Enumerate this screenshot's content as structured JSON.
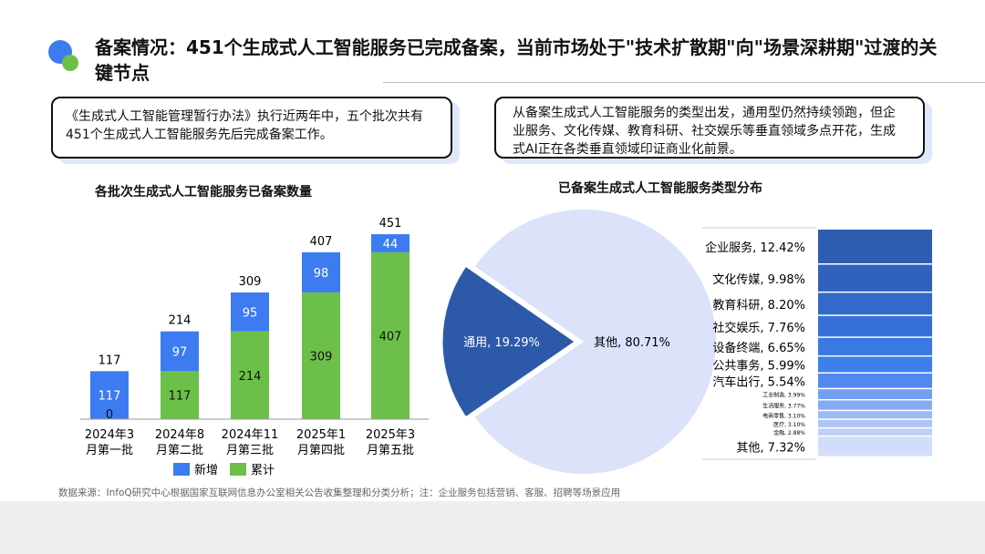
{
  "title": "备案情况：451个生成式人工智能服务已完成备案，当前市场处于\"技术扩散期\"向\"场景深耕期\"过渡的关键节点",
  "box_left": "《生成式人工智能管理暂行办法》执行近两年中，五个批次共有451个生成式人工智能服务先后完成备案工作。",
  "box_right": "从备案生成式人工智能服务的类型出发，通用型仍然持续领跑，但企业服务、文化传媒、教育科研、社交娱乐等垂直领域多点开花，生成式AI正在各类垂直领域印证商业化前景。",
  "source": "数据来源：InfoQ研究中心根据国家互联网信息办公室相关公告收集整理和分类分析；注：企业服务包括营销、客服、招聘等场景应用",
  "chart_data": [
    {
      "type": "bar",
      "title": "各批次生成式人工智能服务已备案数量",
      "categories": [
        "2024年3\n月第一批",
        "2024年8\n月第二批",
        "2024年11\n月第三批",
        "2025年1\n月第四批",
        "2025年3\n月第五批"
      ],
      "series": [
        {
          "name": "累计",
          "color": "#6cc04a",
          "values": [
            0,
            117,
            214,
            309,
            407
          ]
        },
        {
          "name": "新增",
          "color": "#3c7cf0",
          "values": [
            117,
            97,
            95,
            98,
            44
          ]
        }
      ],
      "totals": [
        117,
        214,
        309,
        407,
        451
      ],
      "legend": [
        "新增",
        "累计"
      ],
      "legend_position": "bottom"
    },
    {
      "type": "pie",
      "title": "已备案生成式人工智能服务类型分布",
      "slices": [
        {
          "label": "通用, 19.29%",
          "value": 19.29,
          "color": "#2c5aa8"
        },
        {
          "label": "其他, 80.71%",
          "value": 80.71,
          "color": "#dbe2fa"
        }
      ],
      "breakdown": [
        {
          "label": "企业服务, 12.42%",
          "value": 12.42,
          "color": "#2d5cb0"
        },
        {
          "label": "文化传媒, 9.98%",
          "value": 9.98,
          "color": "#3062bd"
        },
        {
          "label": "教育科研, 8.20%",
          "value": 8.2,
          "color": "#3369c8"
        },
        {
          "label": "社交娱乐, 7.76%",
          "value": 7.76,
          "color": "#3670d6"
        },
        {
          "label": "设备终端, 6.65%",
          "value": 6.65,
          "color": "#3a78e2"
        },
        {
          "label": "公共事务, 5.99%",
          "value": 5.99,
          "color": "#3d7fec"
        },
        {
          "label": "汽车出行, 5.54%",
          "value": 5.54,
          "color": "#5289ee"
        },
        {
          "label": "工业制造, 3.99%",
          "value": 3.99,
          "color": "#759ff2"
        },
        {
          "label": "生活服务, 3.77%",
          "value": 3.77,
          "color": "#86abf3"
        },
        {
          "label": "电商零售, 3.10%",
          "value": 3.1,
          "color": "#9db9f5"
        },
        {
          "label": "医疗, 3.10%",
          "value": 3.1,
          "color": "#aec5f6"
        },
        {
          "label": "金融, 2.88%",
          "value": 2.88,
          "color": "#bfd0f7"
        },
        {
          "label": "其他, 7.32%",
          "value": 7.32,
          "color": "#d2ddf9"
        }
      ]
    }
  ]
}
